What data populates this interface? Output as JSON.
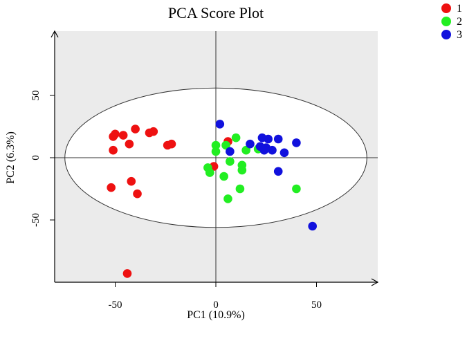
{
  "chart_data": {
    "type": "scatter",
    "title": "PCA Score Plot",
    "xlabel": "PC1 (10.9%)",
    "ylabel": "PC2 (6.3%)",
    "xlim": [
      -80,
      80
    ],
    "ylim": [
      -100,
      100
    ],
    "xticks": [
      -50,
      0,
      50
    ],
    "yticks": [
      -50,
      0,
      50
    ],
    "panel_color": "#ebebeb",
    "ellipse_color": "#ffffff",
    "legend_position": "top-right",
    "ellipse": {
      "cx": 0,
      "cy": 0,
      "rx": 75,
      "ry": 56
    },
    "series": [
      {
        "name": "1",
        "color": "#ee1111",
        "points": [
          [
            -51,
            17
          ],
          [
            -50,
            19
          ],
          [
            -46,
            18
          ],
          [
            -40,
            23
          ],
          [
            -33,
            20
          ],
          [
            -31,
            21
          ],
          [
            -43,
            11
          ],
          [
            -51,
            6
          ],
          [
            -24,
            10
          ],
          [
            -22,
            11
          ],
          [
            -52,
            -24
          ],
          [
            -42,
            -19
          ],
          [
            -39,
            -29
          ],
          [
            -44,
            -93
          ],
          [
            6,
            13
          ],
          [
            -1,
            -7
          ]
        ]
      },
      {
        "name": "2",
        "color": "#22ee22",
        "points": [
          [
            0,
            10
          ],
          [
            0,
            5
          ],
          [
            5,
            10
          ],
          [
            10,
            16
          ],
          [
            15,
            6
          ],
          [
            7,
            -3
          ],
          [
            -4,
            -8
          ],
          [
            -3,
            -12
          ],
          [
            4,
            -15
          ],
          [
            13,
            -6
          ],
          [
            13,
            -10
          ],
          [
            12,
            -25
          ],
          [
            6,
            -33
          ],
          [
            21,
            7
          ],
          [
            40,
            -25
          ]
        ]
      },
      {
        "name": "3",
        "color": "#1111dd",
        "points": [
          [
            2,
            27
          ],
          [
            17,
            11
          ],
          [
            23,
            16
          ],
          [
            25,
            8
          ],
          [
            26,
            15
          ],
          [
            31,
            15
          ],
          [
            7,
            5
          ],
          [
            24,
            6
          ],
          [
            28,
            6
          ],
          [
            34,
            4
          ],
          [
            40,
            12
          ],
          [
            31,
            -11
          ],
          [
            48,
            -55
          ],
          [
            22,
            9
          ]
        ]
      }
    ]
  }
}
